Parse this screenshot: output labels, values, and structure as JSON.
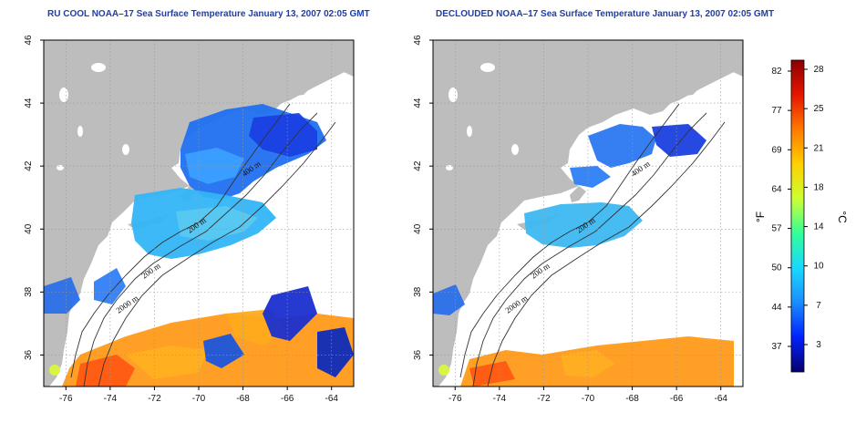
{
  "maps": [
    {
      "title": "RU COOL NOAA–17 Sea Surface Temperature January 13, 2007 02:05 GMT",
      "variant": "full"
    },
    {
      "title": "DECLOUDED NOAA–17 Sea Surface Temperature January 13, 2007 02:05 GMT",
      "variant": "declouded"
    }
  ],
  "axes": {
    "lon_ticks": [
      "-76",
      "-74",
      "-72",
      "-70",
      "-68",
      "-66",
      "-64"
    ],
    "lat_ticks": [
      "36",
      "38",
      "40",
      "42",
      "44",
      "46"
    ],
    "lon_range": [
      -77,
      -63
    ],
    "lat_range": [
      35,
      46
    ]
  },
  "contours": {
    "labels": [
      "400 m",
      "200 m",
      "200 m",
      "2000 m"
    ]
  },
  "colorbar": {
    "f_label": "°F",
    "c_label": "°C",
    "f_ticks": [
      "82",
      "77",
      "69",
      "64",
      "57",
      "50",
      "44",
      "37"
    ],
    "c_ticks": [
      "28",
      "25",
      "21",
      "18",
      "14",
      "10",
      "7",
      "3"
    ],
    "colors": [
      "#07006b",
      "#0022ff",
      "#1b8cff",
      "#19d9ff",
      "#33ff99",
      "#ccff33",
      "#ffd000",
      "#ff7a00",
      "#e51600",
      "#8a0000"
    ]
  },
  "colors": {
    "land": "#bdbdbd",
    "ocean_empty": "#ffffff",
    "title": "#1f3ea8"
  }
}
